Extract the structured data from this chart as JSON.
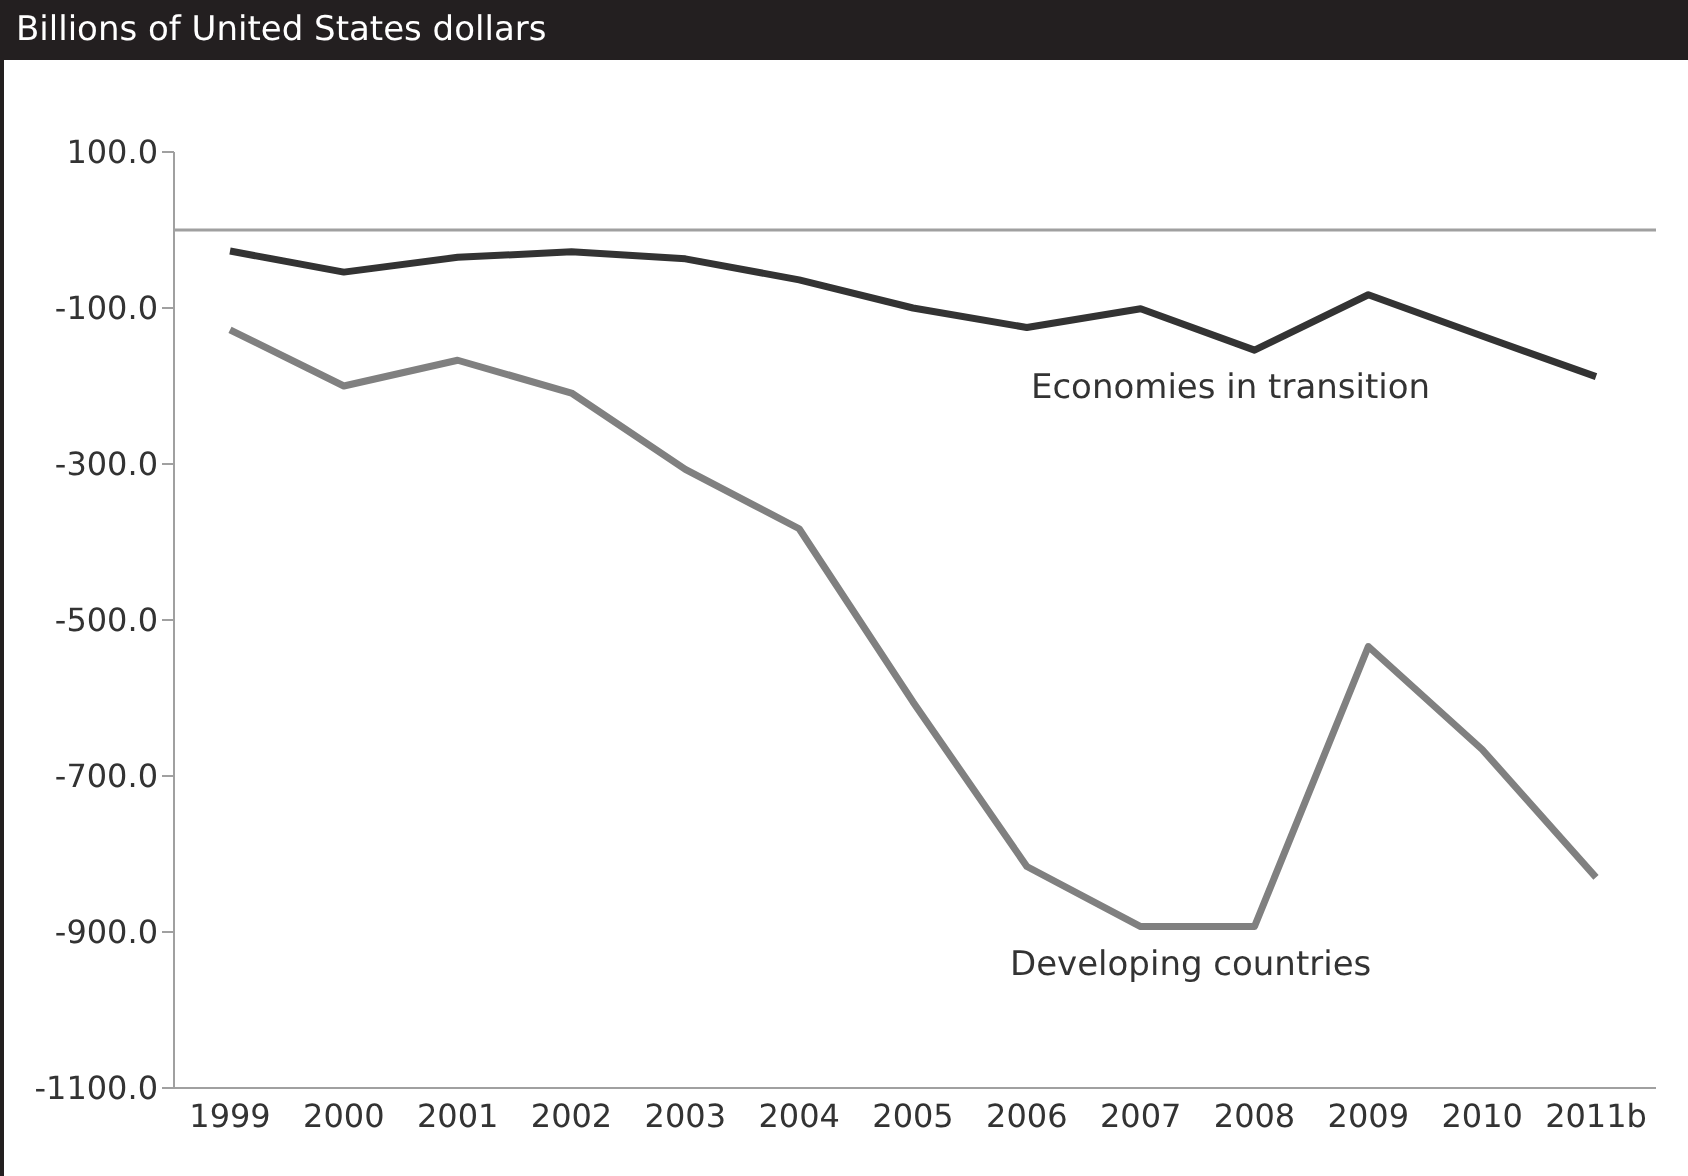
{
  "chart_data": {
    "type": "line",
    "title": "Billions of United States dollars",
    "categories": [
      "1999",
      "2000",
      "2001",
      "2002",
      "2003",
      "2004",
      "2005",
      "2006",
      "2007",
      "2008",
      "2009",
      "2010",
      "2011b"
    ],
    "series": [
      {
        "name": "Economies in transition",
        "color": "#333333",
        "values": [
          -27,
          -54,
          -35,
          -28,
          -37,
          -64,
          -100,
          -125,
          -101,
          -154,
          -83,
          -136,
          -188
        ]
      },
      {
        "name": "Developing countries",
        "color": "#808080",
        "values": [
          -128,
          -200,
          -167,
          -209,
          -307,
          -383,
          -605,
          -816,
          -893,
          -893,
          -534,
          -666,
          -830
        ]
      }
    ],
    "ylim": [
      -1100,
      100
    ],
    "yticks": [
      {
        "value": 100,
        "label": "100.0"
      },
      {
        "value": -100,
        "label": "-100.0"
      },
      {
        "value": -300,
        "label": "-300.0"
      },
      {
        "value": -500,
        "label": "-500.0"
      },
      {
        "value": -700,
        "label": "-700.0"
      },
      {
        "value": -900,
        "label": "-900.0"
      },
      {
        "value": -1100,
        "label": "-1100.0"
      }
    ],
    "ref_lines": [
      {
        "axis": "y",
        "value": 0,
        "color": "#a0a0a0"
      }
    ],
    "grid": false,
    "legend": false,
    "marker": "none",
    "line_style": "solid"
  }
}
